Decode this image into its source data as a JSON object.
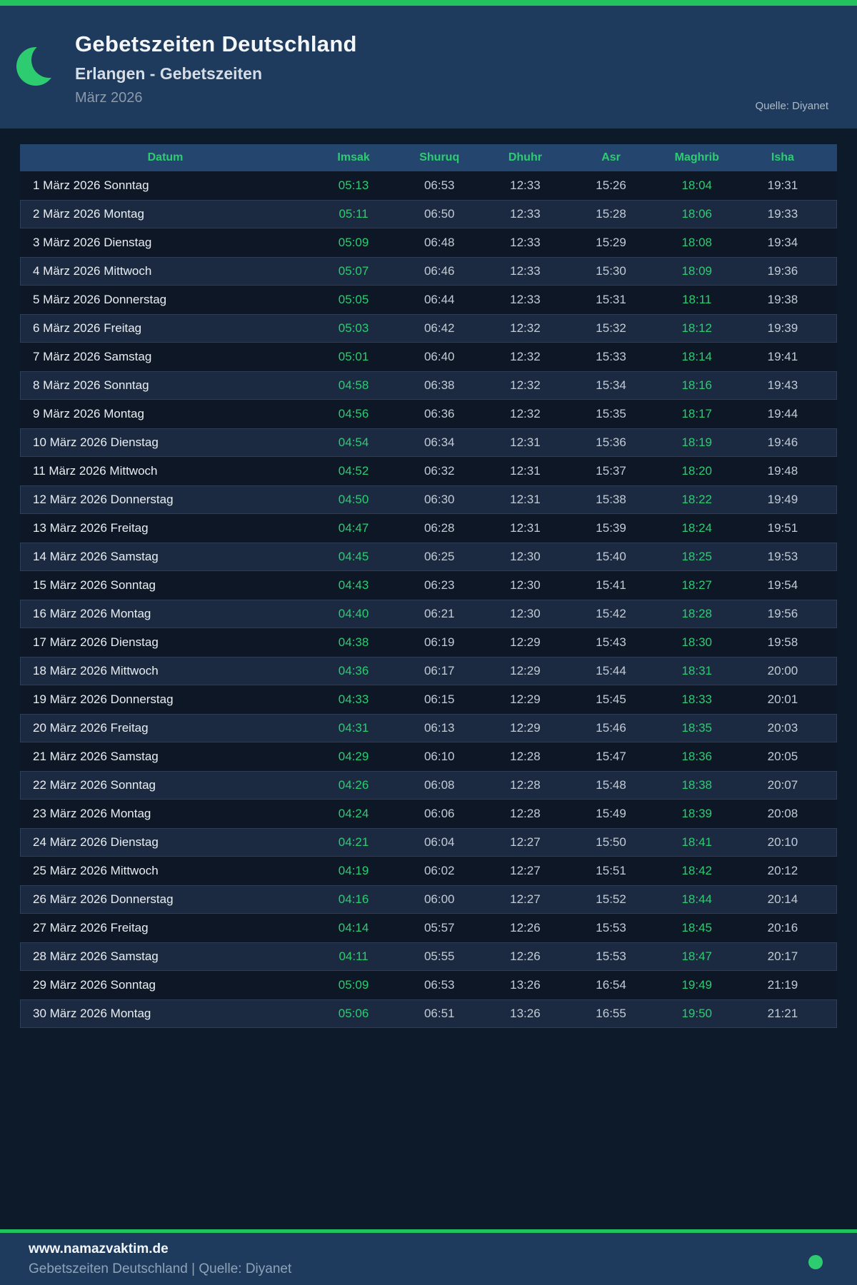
{
  "colors": {
    "accent_green": "#2ecc71",
    "topbar_green": "#22c35e",
    "header_navy": "#1e3a5c",
    "table_header_blue": "#24466e",
    "page_background": "#0d1a29",
    "row_odd": "#0e1726",
    "row_even": "#1b2a41"
  },
  "header": {
    "title": "Gebetszeiten Deutschland",
    "subtitle": "Erlangen - Gebetszeiten",
    "period": "März 2026",
    "source": "Quelle: Diyanet",
    "logo_icon": "crescent-moon-icon"
  },
  "table": {
    "columns": [
      "Datum",
      "Imsak",
      "Shuruq",
      "Dhuhr",
      "Asr",
      "Maghrib",
      "Isha"
    ],
    "column_keys": [
      "datum",
      "imsak",
      "shuruq",
      "dhuhr",
      "asr",
      "maghrib",
      "isha"
    ],
    "green_columns": [
      "imsak",
      "maghrib"
    ],
    "rows": [
      {
        "datum": "1 März 2026 Sonntag",
        "imsak": "05:13",
        "shuruq": "06:53",
        "dhuhr": "12:33",
        "asr": "15:26",
        "maghrib": "18:04",
        "isha": "19:31"
      },
      {
        "datum": "2 März 2026 Montag",
        "imsak": "05:11",
        "shuruq": "06:50",
        "dhuhr": "12:33",
        "asr": "15:28",
        "maghrib": "18:06",
        "isha": "19:33"
      },
      {
        "datum": "3 März 2026 Dienstag",
        "imsak": "05:09",
        "shuruq": "06:48",
        "dhuhr": "12:33",
        "asr": "15:29",
        "maghrib": "18:08",
        "isha": "19:34"
      },
      {
        "datum": "4 März 2026 Mittwoch",
        "imsak": "05:07",
        "shuruq": "06:46",
        "dhuhr": "12:33",
        "asr": "15:30",
        "maghrib": "18:09",
        "isha": "19:36"
      },
      {
        "datum": "5 März 2026 Donnerstag",
        "imsak": "05:05",
        "shuruq": "06:44",
        "dhuhr": "12:33",
        "asr": "15:31",
        "maghrib": "18:11",
        "isha": "19:38"
      },
      {
        "datum": "6 März 2026 Freitag",
        "imsak": "05:03",
        "shuruq": "06:42",
        "dhuhr": "12:32",
        "asr": "15:32",
        "maghrib": "18:12",
        "isha": "19:39"
      },
      {
        "datum": "7 März 2026 Samstag",
        "imsak": "05:01",
        "shuruq": "06:40",
        "dhuhr": "12:32",
        "asr": "15:33",
        "maghrib": "18:14",
        "isha": "19:41"
      },
      {
        "datum": "8 März 2026 Sonntag",
        "imsak": "04:58",
        "shuruq": "06:38",
        "dhuhr": "12:32",
        "asr": "15:34",
        "maghrib": "18:16",
        "isha": "19:43"
      },
      {
        "datum": "9 März 2026 Montag",
        "imsak": "04:56",
        "shuruq": "06:36",
        "dhuhr": "12:32",
        "asr": "15:35",
        "maghrib": "18:17",
        "isha": "19:44"
      },
      {
        "datum": "10 März 2026 Dienstag",
        "imsak": "04:54",
        "shuruq": "06:34",
        "dhuhr": "12:31",
        "asr": "15:36",
        "maghrib": "18:19",
        "isha": "19:46"
      },
      {
        "datum": "11 März 2026 Mittwoch",
        "imsak": "04:52",
        "shuruq": "06:32",
        "dhuhr": "12:31",
        "asr": "15:37",
        "maghrib": "18:20",
        "isha": "19:48"
      },
      {
        "datum": "12 März 2026 Donnerstag",
        "imsak": "04:50",
        "shuruq": "06:30",
        "dhuhr": "12:31",
        "asr": "15:38",
        "maghrib": "18:22",
        "isha": "19:49"
      },
      {
        "datum": "13 März 2026 Freitag",
        "imsak": "04:47",
        "shuruq": "06:28",
        "dhuhr": "12:31",
        "asr": "15:39",
        "maghrib": "18:24",
        "isha": "19:51"
      },
      {
        "datum": "14 März 2026 Samstag",
        "imsak": "04:45",
        "shuruq": "06:25",
        "dhuhr": "12:30",
        "asr": "15:40",
        "maghrib": "18:25",
        "isha": "19:53"
      },
      {
        "datum": "15 März 2026 Sonntag",
        "imsak": "04:43",
        "shuruq": "06:23",
        "dhuhr": "12:30",
        "asr": "15:41",
        "maghrib": "18:27",
        "isha": "19:54"
      },
      {
        "datum": "16 März 2026 Montag",
        "imsak": "04:40",
        "shuruq": "06:21",
        "dhuhr": "12:30",
        "asr": "15:42",
        "maghrib": "18:28",
        "isha": "19:56"
      },
      {
        "datum": "17 März 2026 Dienstag",
        "imsak": "04:38",
        "shuruq": "06:19",
        "dhuhr": "12:29",
        "asr": "15:43",
        "maghrib": "18:30",
        "isha": "19:58"
      },
      {
        "datum": "18 März 2026 Mittwoch",
        "imsak": "04:36",
        "shuruq": "06:17",
        "dhuhr": "12:29",
        "asr": "15:44",
        "maghrib": "18:31",
        "isha": "20:00"
      },
      {
        "datum": "19 März 2026 Donnerstag",
        "imsak": "04:33",
        "shuruq": "06:15",
        "dhuhr": "12:29",
        "asr": "15:45",
        "maghrib": "18:33",
        "isha": "20:01"
      },
      {
        "datum": "20 März 2026 Freitag",
        "imsak": "04:31",
        "shuruq": "06:13",
        "dhuhr": "12:29",
        "asr": "15:46",
        "maghrib": "18:35",
        "isha": "20:03"
      },
      {
        "datum": "21 März 2026 Samstag",
        "imsak": "04:29",
        "shuruq": "06:10",
        "dhuhr": "12:28",
        "asr": "15:47",
        "maghrib": "18:36",
        "isha": "20:05"
      },
      {
        "datum": "22 März 2026 Sonntag",
        "imsak": "04:26",
        "shuruq": "06:08",
        "dhuhr": "12:28",
        "asr": "15:48",
        "maghrib": "18:38",
        "isha": "20:07"
      },
      {
        "datum": "23 März 2026 Montag",
        "imsak": "04:24",
        "shuruq": "06:06",
        "dhuhr": "12:28",
        "asr": "15:49",
        "maghrib": "18:39",
        "isha": "20:08"
      },
      {
        "datum": "24 März 2026 Dienstag",
        "imsak": "04:21",
        "shuruq": "06:04",
        "dhuhr": "12:27",
        "asr": "15:50",
        "maghrib": "18:41",
        "isha": "20:10"
      },
      {
        "datum": "25 März 2026 Mittwoch",
        "imsak": "04:19",
        "shuruq": "06:02",
        "dhuhr": "12:27",
        "asr": "15:51",
        "maghrib": "18:42",
        "isha": "20:12"
      },
      {
        "datum": "26 März 2026 Donnerstag",
        "imsak": "04:16",
        "shuruq": "06:00",
        "dhuhr": "12:27",
        "asr": "15:52",
        "maghrib": "18:44",
        "isha": "20:14"
      },
      {
        "datum": "27 März 2026 Freitag",
        "imsak": "04:14",
        "shuruq": "05:57",
        "dhuhr": "12:26",
        "asr": "15:53",
        "maghrib": "18:45",
        "isha": "20:16"
      },
      {
        "datum": "28 März 2026 Samstag",
        "imsak": "04:11",
        "shuruq": "05:55",
        "dhuhr": "12:26",
        "asr": "15:53",
        "maghrib": "18:47",
        "isha": "20:17"
      },
      {
        "datum": "29 März 2026 Sonntag",
        "imsak": "05:09",
        "shuruq": "06:53",
        "dhuhr": "13:26",
        "asr": "16:54",
        "maghrib": "19:49",
        "isha": "21:19"
      },
      {
        "datum": "30 März 2026 Montag",
        "imsak": "05:06",
        "shuruq": "06:51",
        "dhuhr": "13:26",
        "asr": "16:55",
        "maghrib": "19:50",
        "isha": "21:21"
      }
    ]
  },
  "footer": {
    "website": "www.namazvaktim.de",
    "tagline": "Gebetszeiten Deutschland | Quelle: Diyanet",
    "status_icon": "green-dot-icon"
  }
}
